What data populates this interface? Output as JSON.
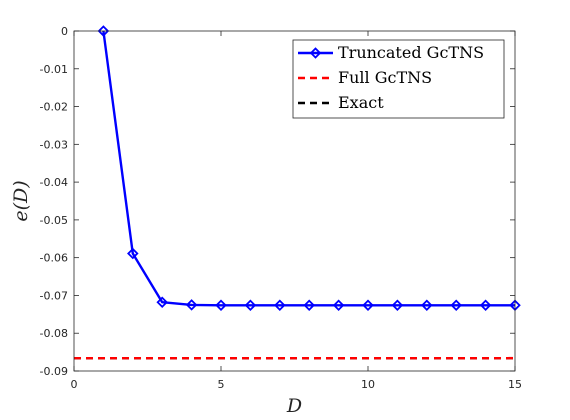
{
  "chart_data": {
    "type": "line",
    "xlabel": "D",
    "ylabel": "e(D)",
    "xlim": [
      0,
      15
    ],
    "ylim": [
      -0.09,
      0
    ],
    "xticks": [
      0,
      5,
      10,
      15
    ],
    "yticks": [
      0,
      -0.01,
      -0.02,
      -0.03,
      -0.04,
      -0.05,
      -0.06,
      -0.07,
      -0.08,
      -0.09
    ],
    "xtick_labels": [
      "0",
      "5",
      "10",
      "15"
    ],
    "ytick_labels": [
      "0",
      "-0.01",
      "-0.02",
      "-0.03",
      "-0.04",
      "-0.05",
      "-0.06",
      "-0.07",
      "-0.08",
      "-0.09"
    ],
    "grid": false,
    "legend_position": "top-right",
    "series": [
      {
        "name": "Truncated GcTNS",
        "color": "#0000ff",
        "style": "solid",
        "marker": "diamond",
        "x": [
          1,
          2,
          3,
          4,
          5,
          6,
          7,
          8,
          9,
          10,
          11,
          12,
          13,
          14,
          15
        ],
        "y": [
          0,
          -0.0589,
          -0.0718,
          -0.0725,
          -0.0726,
          -0.0726,
          -0.0726,
          -0.0726,
          -0.0726,
          -0.0726,
          -0.0726,
          -0.0726,
          -0.0726,
          -0.0726,
          -0.0726
        ]
      },
      {
        "name": "Full GcTNS",
        "color": "#ff0000",
        "style": "dashed",
        "marker": "none",
        "x": [
          0,
          15
        ],
        "y": [
          -0.0866,
          -0.0866
        ]
      },
      {
        "name": "Exact",
        "color": "#000000",
        "style": "dashed",
        "marker": "none",
        "x": [
          0,
          15
        ],
        "y": [
          -0.0866,
          -0.0866
        ]
      }
    ]
  }
}
